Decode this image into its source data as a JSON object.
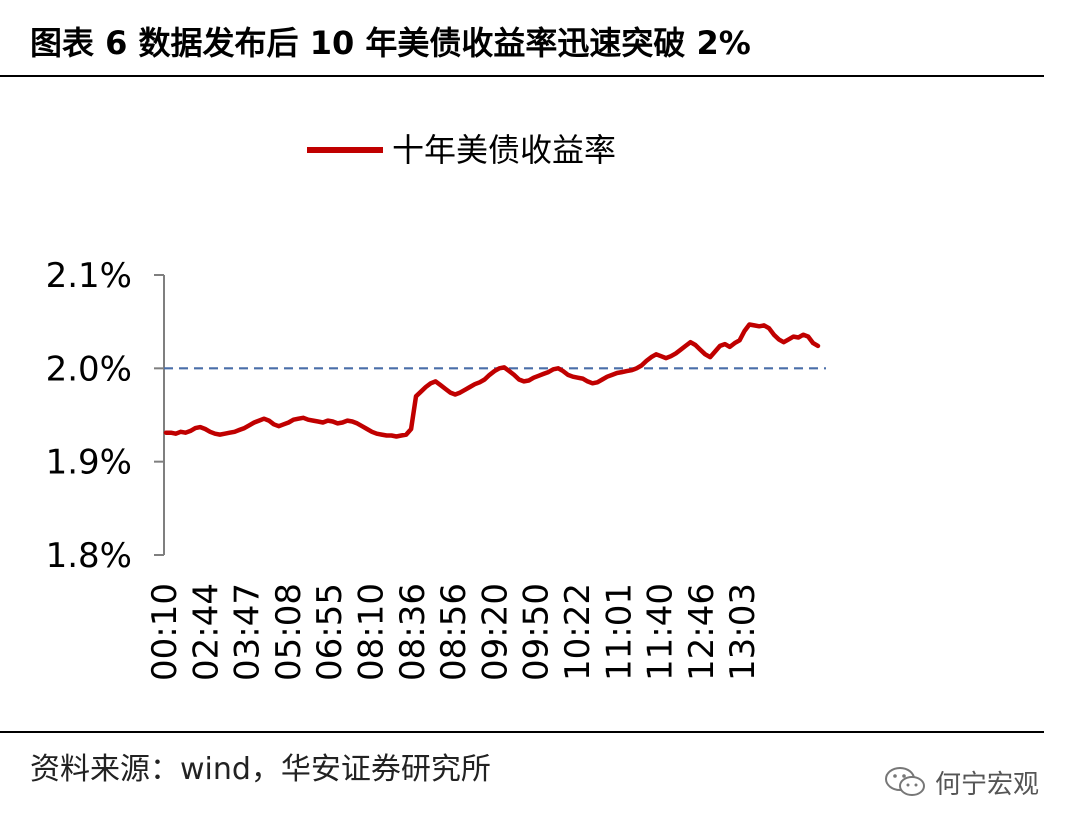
{
  "title": "图表 6  数据发布后 10 年美债收益率迅速突破 2%",
  "source": "资料来源：wind，华安证券研究所",
  "watermark": {
    "text": "何宁宏观",
    "icon": "wechat-icon"
  },
  "colors": {
    "series": "#c00000",
    "reference_line": "#4a6ea9",
    "axis": "#7f7f7f"
  },
  "chart_data": {
    "type": "line",
    "title": "",
    "xlabel": "",
    "ylabel": "",
    "ylim": [
      1.8,
      2.1
    ],
    "y_ticks": [
      "2.1%",
      "2.0%",
      "1.9%",
      "1.8%"
    ],
    "y_tick_values": [
      2.1,
      2.0,
      1.9,
      1.8
    ],
    "x_tick_labels": [
      "00:10",
      "02:44",
      "03:47",
      "05:08",
      "06:55",
      "08:10",
      "08:36",
      "08:56",
      "09:20",
      "09:50",
      "10:22",
      "11:01",
      "11:40",
      "12:46",
      "13:03"
    ],
    "grid": false,
    "legend": "top-center",
    "reference_line": {
      "y": 2.0,
      "style": "dashed"
    },
    "series": [
      {
        "name": "十年美债收益率",
        "values": [
          1.931,
          1.931,
          1.93,
          1.932,
          1.931,
          1.933,
          1.936,
          1.937,
          1.935,
          1.932,
          1.93,
          1.929,
          1.93,
          1.931,
          1.932,
          1.934,
          1.936,
          1.939,
          1.942,
          1.944,
          1.946,
          1.944,
          1.94,
          1.938,
          1.94,
          1.942,
          1.945,
          1.946,
          1.947,
          1.945,
          1.944,
          1.943,
          1.942,
          1.944,
          1.943,
          1.941,
          1.942,
          1.944,
          1.943,
          1.941,
          1.938,
          1.935,
          1.932,
          1.93,
          1.929,
          1.928,
          1.928,
          1.927,
          1.928,
          1.929,
          1.935,
          1.97,
          1.975,
          1.98,
          1.984,
          1.986,
          1.982,
          1.978,
          1.974,
          1.972,
          1.974,
          1.977,
          1.98,
          1.983,
          1.985,
          1.988,
          1.993,
          1.997,
          2.0,
          2.001,
          1.997,
          1.993,
          1.988,
          1.986,
          1.987,
          1.99,
          1.992,
          1.994,
          1.996,
          1.999,
          2.0,
          1.997,
          1.993,
          1.991,
          1.99,
          1.989,
          1.986,
          1.984,
          1.985,
          1.988,
          1.991,
          1.993,
          1.995,
          1.996,
          1.997,
          1.998,
          2.0,
          2.003,
          2.008,
          2.012,
          2.015,
          2.013,
          2.011,
          2.013,
          2.016,
          2.02,
          2.024,
          2.028,
          2.025,
          2.02,
          2.015,
          2.012,
          2.018,
          2.024,
          2.026,
          2.023,
          2.027,
          2.03,
          2.04,
          2.047,
          2.046,
          2.045,
          2.046,
          2.043,
          2.036,
          2.031,
          2.028,
          2.031,
          2.034,
          2.033,
          2.036,
          2.034,
          2.027,
          2.024
        ]
      }
    ]
  }
}
